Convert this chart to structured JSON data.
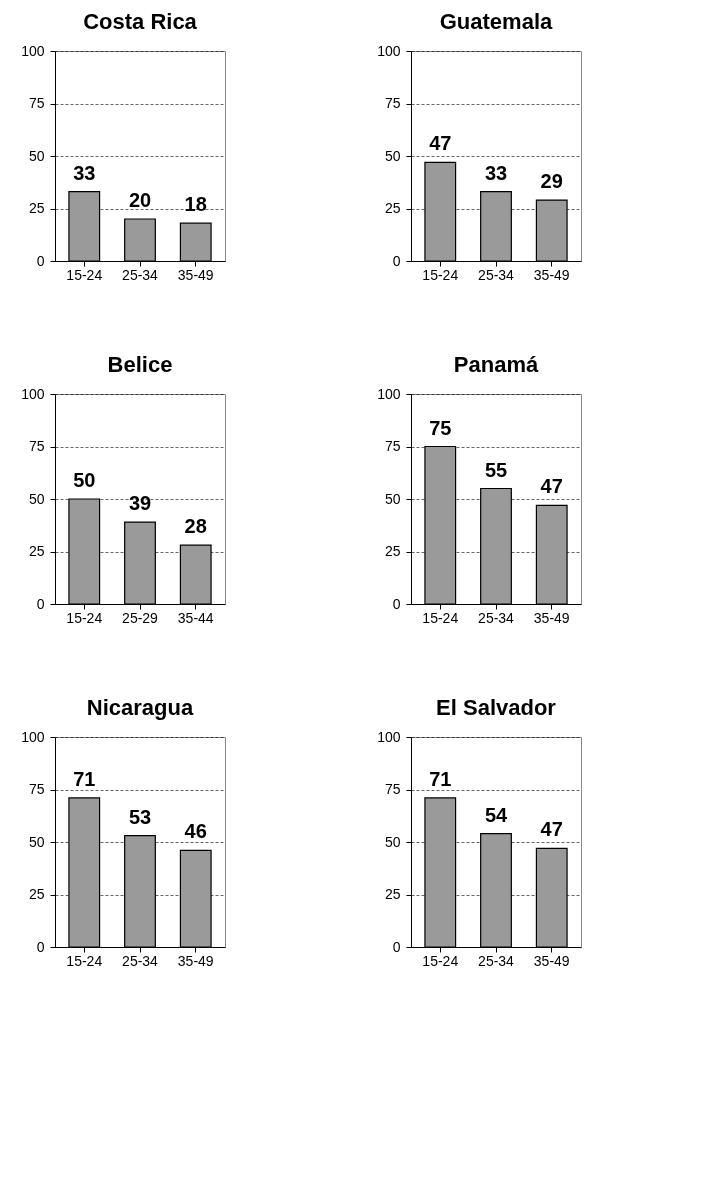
{
  "chart_data": [
    {
      "type": "bar",
      "title": "Costa Rica",
      "categories": [
        "15-24",
        "25-34",
        "35-49"
      ],
      "values": [
        33,
        20,
        18
      ],
      "color": "#9a9a9a",
      "ylim": [
        0,
        100
      ],
      "yticks": [
        0,
        25,
        50,
        75,
        100
      ],
      "grid": "y",
      "data_labels": true
    },
    {
      "type": "bar",
      "title": "Guatemala",
      "categories": [
        "15-24",
        "25-34",
        "35-49"
      ],
      "values": [
        47,
        33,
        29
      ],
      "color": "#9a9a9a",
      "ylim": [
        0,
        100
      ],
      "yticks": [
        0,
        25,
        50,
        75,
        100
      ],
      "grid": "y",
      "data_labels": true
    },
    {
      "type": "bar",
      "title": "Belice",
      "categories": [
        "15-24",
        "25-29",
        "35-44"
      ],
      "values": [
        50,
        39,
        28
      ],
      "color": "#9a9a9a",
      "ylim": [
        0,
        100
      ],
      "yticks": [
        0,
        25,
        50,
        75,
        100
      ],
      "grid": "y",
      "data_labels": true
    },
    {
      "type": "bar",
      "title": "Panamá",
      "categories": [
        "15-24",
        "25-34",
        "35-49"
      ],
      "values": [
        75,
        55,
        47
      ],
      "color": "#9a9a9a",
      "ylim": [
        0,
        100
      ],
      "yticks": [
        0,
        25,
        50,
        75,
        100
      ],
      "grid": "y",
      "data_labels": true
    },
    {
      "type": "bar",
      "title": "Nicaragua",
      "categories": [
        "15-24",
        "25-34",
        "35-49"
      ],
      "values": [
        71,
        53,
        46
      ],
      "color": "#9a9a9a",
      "ylim": [
        0,
        100
      ],
      "yticks": [
        0,
        25,
        50,
        75,
        100
      ],
      "grid": "y",
      "data_labels": true
    },
    {
      "type": "bar",
      "title": "El Salvador",
      "categories": [
        "15-24",
        "25-34",
        "35-49"
      ],
      "values": [
        71,
        54,
        47
      ],
      "color": "#9a9a9a",
      "ylim": [
        0,
        100
      ],
      "yticks": [
        0,
        25,
        50,
        75,
        100
      ],
      "grid": "y",
      "data_labels": true
    }
  ]
}
